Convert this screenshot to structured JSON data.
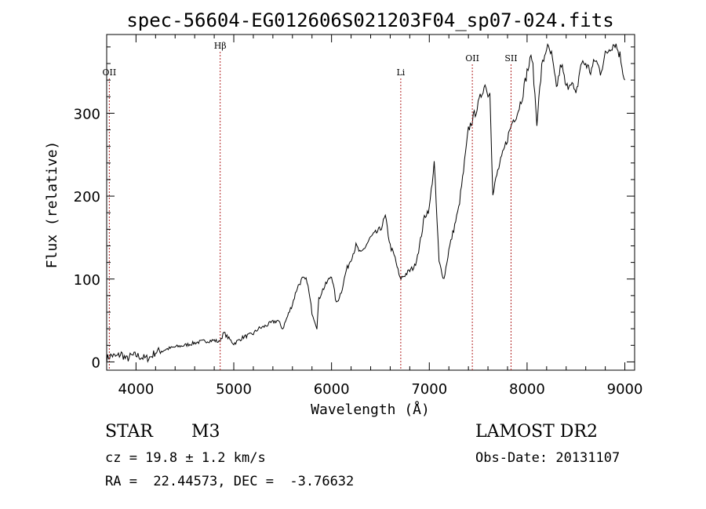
{
  "chart_data": {
    "type": "line",
    "title": "spec-56604-EG012606S021203F04_sp07-024.fits",
    "xlabel": "Wavelength (Å)",
    "ylabel": "Flux (relative)",
    "xlim": [
      3700,
      9100
    ],
    "ylim": [
      -10,
      395
    ],
    "xticks": [
      "4000",
      "5000",
      "6000",
      "7000",
      "8000",
      "9000"
    ],
    "yticks": [
      "0",
      "100",
      "200",
      "300"
    ],
    "x_tick_values": [
      4000,
      5000,
      6000,
      7000,
      8000,
      9000
    ],
    "y_tick_values": [
      0,
      100,
      200,
      300
    ],
    "grid": false,
    "lines": [
      {
        "label": "OII",
        "x": 3727,
        "level": "low"
      },
      {
        "label": "Hβ",
        "x": 4861,
        "level": "high"
      },
      {
        "label": "Li",
        "x": 6708,
        "level": "low"
      },
      {
        "label": "OII",
        "x": 7440,
        "level": "mid"
      },
      {
        "label": "SII",
        "x": 7836,
        "level": "mid"
      }
    ],
    "series": [
      {
        "name": "flux",
        "x": [
          3700,
          3750,
          3800,
          3850,
          3900,
          3950,
          4000,
          4050,
          4100,
          4150,
          4200,
          4300,
          4400,
          4500,
          4600,
          4700,
          4800,
          4850,
          4900,
          4950,
          5000,
          5100,
          5200,
          5250,
          5300,
          5400,
          5450,
          5500,
          5550,
          5600,
          5650,
          5700,
          5750,
          5800,
          5850,
          5870,
          5900,
          5950,
          6000,
          6050,
          6100,
          6150,
          6200,
          6250,
          6300,
          6400,
          6500,
          6550,
          6600,
          6650,
          6700,
          6750,
          6800,
          6850,
          6900,
          6950,
          7000,
          7050,
          7100,
          7150,
          7200,
          7250,
          7300,
          7350,
          7400,
          7450,
          7500,
          7550,
          7580,
          7600,
          7620,
          7650,
          7680,
          7700,
          7750,
          7800,
          7850,
          7900,
          7950,
          8000,
          8050,
          8100,
          8150,
          8200,
          8250,
          8300,
          8350,
          8400,
          8450,
          8500,
          8550,
          8600,
          8650,
          8700,
          8750,
          8800,
          8850,
          8900,
          8950,
          9000
        ],
        "y": [
          4,
          8,
          6,
          10,
          3,
          7,
          8,
          6,
          4,
          6,
          12,
          15,
          18,
          20,
          23,
          25,
          26,
          24,
          35,
          28,
          22,
          30,
          34,
          40,
          42,
          48,
          50,
          40,
          55,
          70,
          90,
          100,
          98,
          60,
          42,
          75,
          85,
          95,
          105,
          70,
          85,
          110,
          125,
          140,
          130,
          150,
          160,
          175,
          140,
          125,
          100,
          105,
          110,
          115,
          140,
          175,
          185,
          240,
          120,
          100,
          135,
          160,
          185,
          230,
          280,
          295,
          310,
          330,
          335,
          320,
          330,
          200,
          220,
          230,
          250,
          270,
          290,
          300,
          320,
          350,
          370,
          290,
          355,
          380,
          370,
          330,
          360,
          330,
          340,
          320,
          360,
          360,
          350,
          365,
          350,
          370,
          380,
          385,
          370,
          340
        ]
      }
    ]
  },
  "info": {
    "object_class": "STAR",
    "subclass": "M3",
    "survey": "LAMOST DR2",
    "redshift": "cz = 19.8 ± 1.2 km/s",
    "obs_date": "Obs-Date: 20131107",
    "coords": "RA =  22.44573, DEC =  -3.76632"
  }
}
